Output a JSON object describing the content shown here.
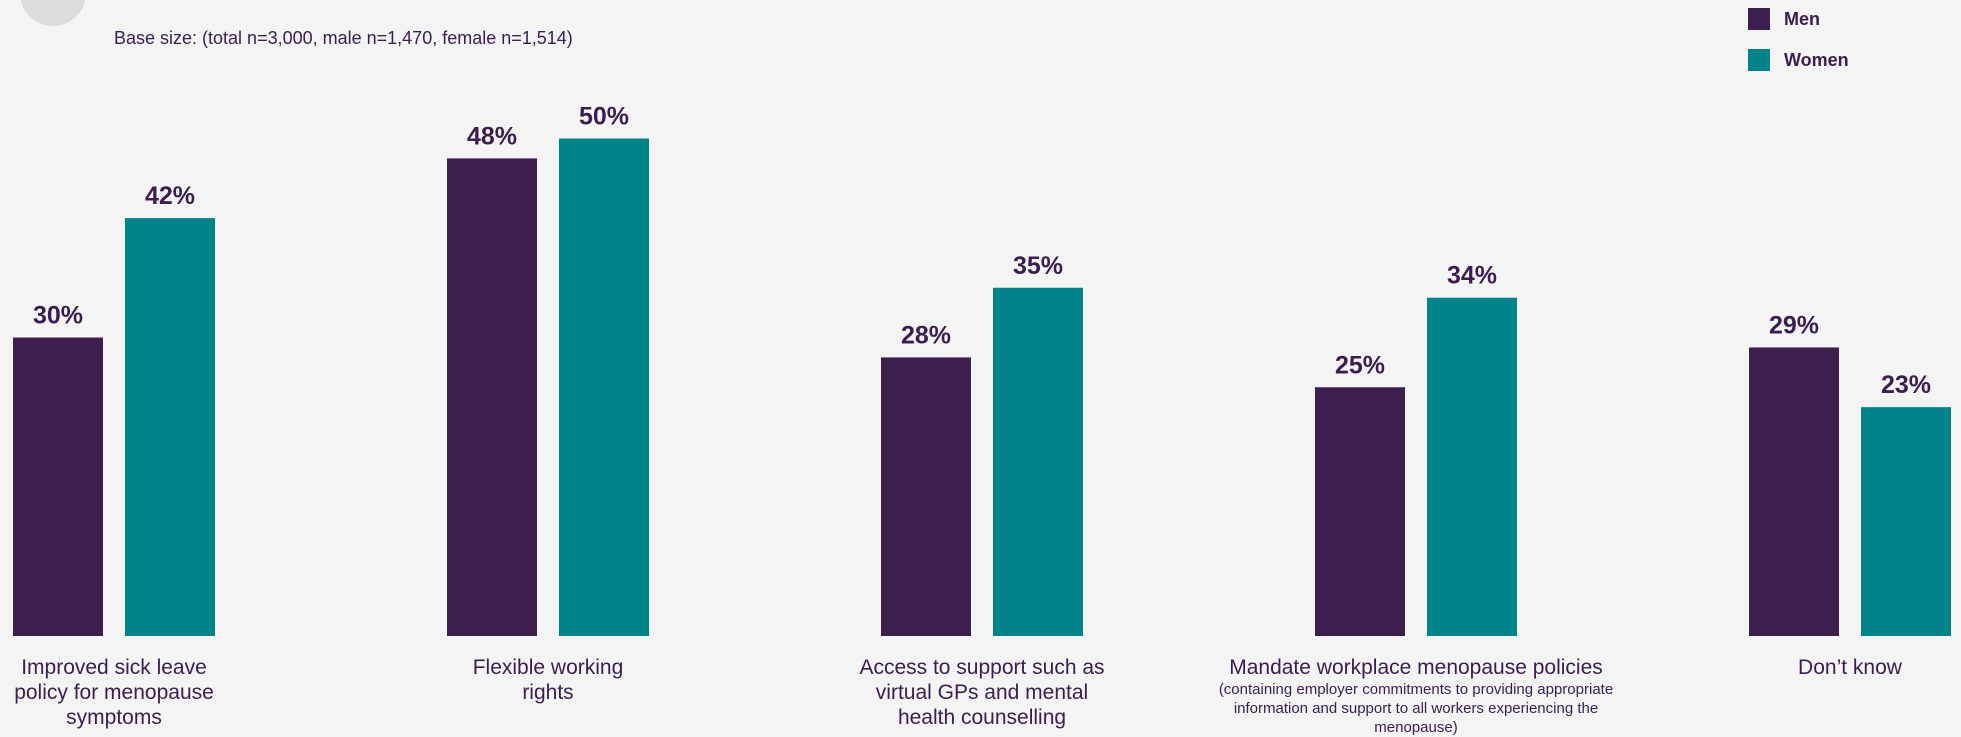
{
  "header": {
    "title": "",
    "subtitle": "Base size: (total n=3,000, male n=1,470, female n=1,514)"
  },
  "legend": [
    {
      "label": "Men",
      "color": "#3d1f4f"
    },
    {
      "label": "Women",
      "color": "#00848a"
    }
  ],
  "chart_data": {
    "type": "bar",
    "title": "",
    "xlabel": "",
    "ylabel": "",
    "ylim": [
      0,
      55
    ],
    "grid": false,
    "legend_position": "top-right",
    "categories": [
      "Improved sick leave policy for menopause symptoms",
      "Flexible working rights",
      "Access to support such as virtual GPs and mental health counselling",
      "Mandate workplace menopause policies",
      "Don’t know"
    ],
    "category_notes": [
      "",
      "",
      "",
      "(containing employer commitments to providing appropriate information and support to all workers experiencing the menopause)",
      ""
    ],
    "series": [
      {
        "name": "Men",
        "color": "#3d1f4f",
        "values": [
          30,
          48,
          28,
          25,
          29
        ],
        "labels": [
          "30%",
          "48%",
          "28%",
          "25%",
          "29%"
        ]
      },
      {
        "name": "Women",
        "color": "#00848a",
        "values": [
          42,
          50,
          35,
          34,
          23
        ],
        "labels": [
          "42%",
          "50%",
          "35%",
          "34%",
          "23%"
        ]
      }
    ]
  }
}
